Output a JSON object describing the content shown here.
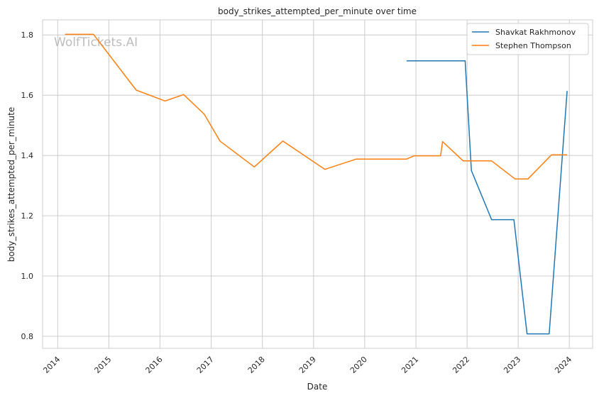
{
  "chart_data": {
    "type": "line",
    "title": "body_strikes_attempted_per_minute over time",
    "xlabel": "Date",
    "ylabel": "body_strikes_attempted_per_minute",
    "watermark": "WolfTickets.AI",
    "x_ticks": [
      "2014",
      "2015",
      "2016",
      "2017",
      "2018",
      "2019",
      "2020",
      "2021",
      "2022",
      "2023",
      "2024"
    ],
    "y_ticks": [
      "0.8",
      "1.0",
      "1.2",
      "1.4",
      "1.6",
      "1.8"
    ],
    "xlim": [
      "2013-09-15",
      "2024-06-15"
    ],
    "ylim": [
      0.76,
      1.85
    ],
    "grid": true,
    "legend_position": "top-right",
    "colors": {
      "Shavkat Rakhmonov": "#1f77b4",
      "Stephen Thompson": "#ff7f0e"
    },
    "series": [
      {
        "name": "Shavkat Rakhmonov",
        "color": "#1f77b4",
        "points": [
          [
            "2020-10-26",
            1.714
          ],
          [
            "2021-12-18",
            1.714
          ],
          [
            "2022-02-01",
            1.35
          ],
          [
            "2022-06-25",
            1.187
          ],
          [
            "2022-12-01",
            1.187
          ],
          [
            "2023-03-05",
            0.808
          ],
          [
            "2023-08-10",
            0.808
          ],
          [
            "2023-12-16",
            1.614
          ]
        ]
      },
      {
        "name": "Stephen Thompson",
        "color": "#ff7f0e",
        "points": [
          [
            "2014-02-22",
            1.802
          ],
          [
            "2014-09-13",
            1.802
          ],
          [
            "2015-07-15",
            1.617
          ],
          [
            "2016-02-06",
            1.581
          ],
          [
            "2016-06-18",
            1.602
          ],
          [
            "2016-11-12",
            1.537
          ],
          [
            "2017-03-04",
            1.448
          ],
          [
            "2017-11-04",
            1.362
          ],
          [
            "2018-05-27",
            1.448
          ],
          [
            "2019-03-23",
            1.354
          ],
          [
            "2019-11-02",
            1.388
          ],
          [
            "2020-10-26",
            1.388
          ],
          [
            "2020-12-19",
            1.399
          ],
          [
            "2021-06-26",
            1.399
          ],
          [
            "2021-07-10",
            1.446
          ],
          [
            "2021-12-04",
            1.382
          ],
          [
            "2022-06-25",
            1.382
          ],
          [
            "2022-12-10",
            1.322
          ],
          [
            "2023-03-11",
            1.322
          ],
          [
            "2023-08-26",
            1.402
          ],
          [
            "2023-12-16",
            1.402
          ]
        ]
      }
    ]
  }
}
